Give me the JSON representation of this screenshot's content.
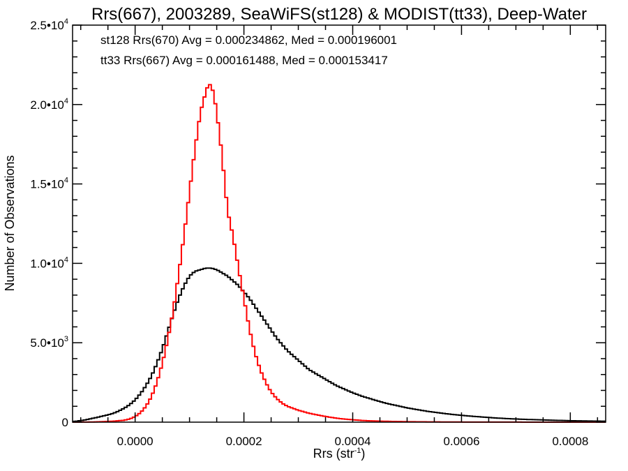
{
  "chart_data": {
    "type": "line",
    "title": "Rrs(667), 2003289, SeaWiFS(st128) & MODIST(tt33), Deep-Water",
    "xlabel": "Rrs (str",
    "xlabel_sup": "-1",
    "xlabel_close": ")",
    "ylabel": "Number of Observations",
    "xlim": [
      -0.000115,
      0.000865
    ],
    "ylim": [
      0,
      25000
    ],
    "x_ticks": [
      {
        "value": 0.0,
        "label": "0.0000"
      },
      {
        "value": 0.0002,
        "label": "0.0002"
      },
      {
        "value": 0.0004,
        "label": "0.0004"
      },
      {
        "value": 0.0006,
        "label": "0.0006"
      },
      {
        "value": 0.0008,
        "label": "0.0008"
      }
    ],
    "y_ticks": [
      {
        "value": 0,
        "mant": "0",
        "exp": ""
      },
      {
        "value": 5000,
        "mant": "5.0•10",
        "exp": "3"
      },
      {
        "value": 10000,
        "mant": "1.0•10",
        "exp": "4"
      },
      {
        "value": 15000,
        "mant": "1.5•10",
        "exp": "4"
      },
      {
        "value": 20000,
        "mant": "2.0•10",
        "exp": "4"
      },
      {
        "value": 25000,
        "mant": "2.5•10",
        "exp": "4"
      }
    ],
    "annotations": [
      {
        "text": "st128 Rrs(670) Avg = 0.000234862, Med = 0.000196001",
        "color": "#000000"
      },
      {
        "text": "tt33 Rrs(667) Avg = 0.000161488, Med = 0.000153417",
        "color": "#ff0000"
      }
    ],
    "series": [
      {
        "color": "#000000",
        "bin_width": 5e-06,
        "x": [
          -0.00011,
          -0.0001,
          -9e-05,
          -8e-05,
          -7e-05,
          -6e-05,
          -5e-05,
          -4e-05,
          -3e-05,
          -2e-05,
          -1e-05,
          0.0,
          1e-05,
          2e-05,
          3e-05,
          4e-05,
          5e-05,
          6e-05,
          7e-05,
          8e-05,
          9e-05,
          0.0001,
          0.00011,
          0.00012,
          0.00013,
          0.00014,
          0.00015,
          0.00016,
          0.00017,
          0.00018,
          0.00019,
          0.0002,
          0.00021,
          0.00022,
          0.00023,
          0.00024,
          0.00025,
          0.00026,
          0.00027,
          0.00028,
          0.00029,
          0.0003,
          0.00031,
          0.00032,
          0.00033,
          0.00034,
          0.00035,
          0.00036,
          0.00037,
          0.00038,
          0.00039,
          0.0004,
          0.00042,
          0.00044,
          0.00046,
          0.00048,
          0.0005,
          0.00052,
          0.00054,
          0.00056,
          0.00058,
          0.0006,
          0.00062,
          0.00064,
          0.00066,
          0.00068,
          0.0007,
          0.00072,
          0.00074,
          0.00076,
          0.00078,
          0.0008,
          0.00082,
          0.00084,
          0.00086
        ],
        "values": [
          50,
          100,
          150,
          230,
          300,
          380,
          460,
          560,
          700,
          880,
          1100,
          1400,
          1800,
          2300,
          2900,
          3700,
          4600,
          5700,
          6800,
          7800,
          8600,
          9200,
          9500,
          9600,
          9700,
          9700,
          9600,
          9400,
          9200,
          8900,
          8600,
          8200,
          7800,
          7300,
          6800,
          6300,
          5800,
          5300,
          4900,
          4500,
          4200,
          3900,
          3600,
          3300,
          3100,
          2900,
          2700,
          2500,
          2300,
          2150,
          2000,
          1850,
          1600,
          1400,
          1200,
          1050,
          900,
          780,
          670,
          580,
          500,
          430,
          370,
          320,
          270,
          230,
          200,
          170,
          150,
          130,
          110,
          90,
          80,
          70,
          60
        ]
      },
      {
        "color": "#ff0000",
        "bin_width": 5e-06,
        "x": [
          -0.00011,
          -8e-05,
          -6e-05,
          -4e-05,
          -2e-05,
          -1e-05,
          0.0,
          1e-05,
          2e-05,
          3e-05,
          4e-05,
          5e-05,
          6e-05,
          7e-05,
          8e-05,
          9e-05,
          0.0001,
          0.00011,
          0.00012,
          0.00013,
          0.000135,
          0.00014,
          0.000145,
          0.00015,
          0.000155,
          0.00016,
          0.000165,
          0.00017,
          0.00018,
          0.00019,
          0.0002,
          0.00021,
          0.00022,
          0.00023,
          0.00024,
          0.00025,
          0.00026,
          0.00027,
          0.00028,
          0.0003,
          0.00032,
          0.00034,
          0.00036,
          0.00038,
          0.0004,
          0.00042,
          0.00045,
          0.0005,
          0.00055,
          0.0006,
          0.0007,
          0.00086
        ],
        "values": [
          0,
          10,
          30,
          60,
          120,
          200,
          350,
          600,
          1000,
          1600,
          2500,
          3700,
          5200,
          7000,
          9300,
          11800,
          14500,
          17200,
          19500,
          20800,
          21300,
          21200,
          20600,
          19500,
          18200,
          16700,
          15000,
          13300,
          11700,
          9700,
          7800,
          5900,
          4400,
          3300,
          2500,
          1900,
          1500,
          1200,
          1000,
          750,
          560,
          420,
          300,
          210,
          150,
          100,
          60,
          30,
          15,
          8,
          3,
          0
        ]
      }
    ]
  }
}
